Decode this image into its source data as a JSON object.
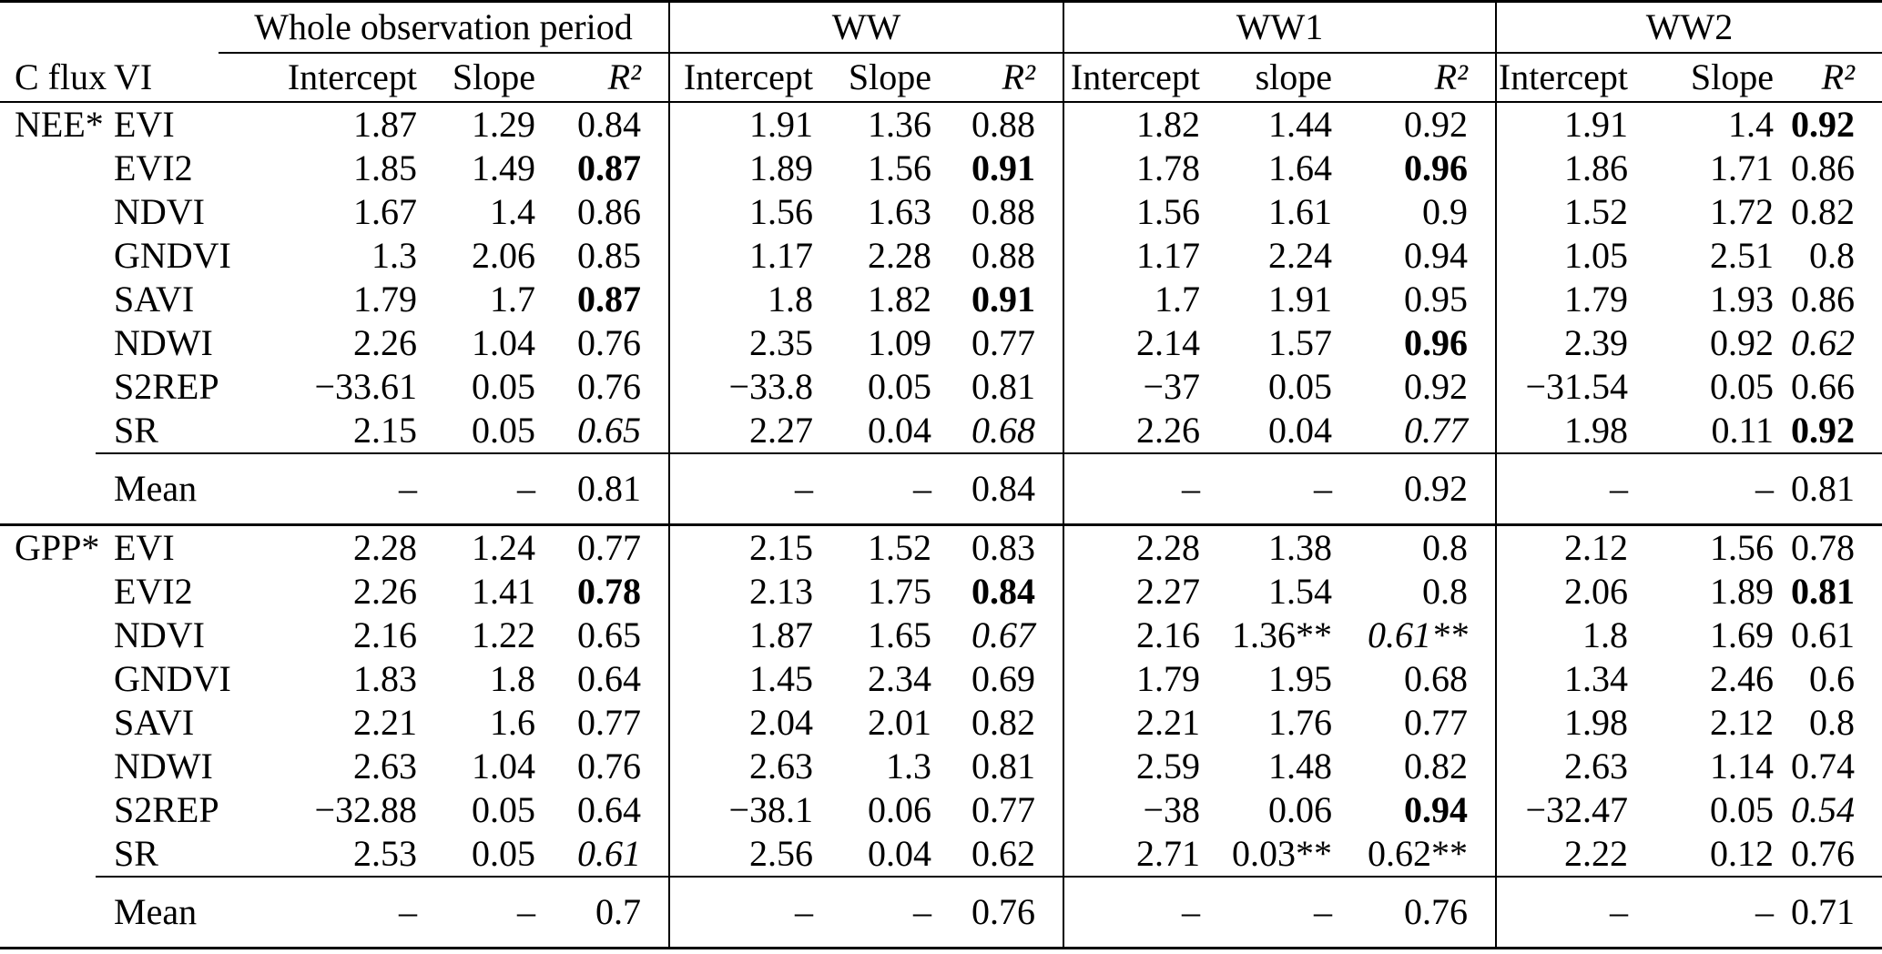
{
  "table": {
    "c_flux_label": "C flux",
    "vi_label": "VI",
    "groups": [
      {
        "label": "Whole observation period",
        "cols": [
          "Intercept",
          "Slope",
          "R²"
        ]
      },
      {
        "label": "WW",
        "cols": [
          "Intercept",
          "Slope",
          "R²"
        ]
      },
      {
        "label": "WW1",
        "cols": [
          "Intercept",
          "slope",
          "R²"
        ]
      },
      {
        "label": "WW2",
        "cols": [
          "Intercept",
          "Slope",
          "R²"
        ]
      }
    ],
    "sections": [
      {
        "c_flux": "NEE*",
        "rows": [
          {
            "vi": "EVI",
            "cells": [
              [
                "1.87",
                "1.29",
                "0.84"
              ],
              [
                "1.91",
                "1.36",
                "0.88"
              ],
              [
                "1.82",
                "1.44",
                "0.92"
              ],
              [
                "1.91",
                "1.4",
                "0.92"
              ]
            ],
            "r2_style": [
              "normal",
              "normal",
              "normal",
              "bold"
            ]
          },
          {
            "vi": "EVI2",
            "cells": [
              [
                "1.85",
                "1.49",
                "0.87"
              ],
              [
                "1.89",
                "1.56",
                "0.91"
              ],
              [
                "1.78",
                "1.64",
                "0.96"
              ],
              [
                "1.86",
                "1.71",
                "0.86"
              ]
            ],
            "r2_style": [
              "bold",
              "bold",
              "bold",
              "normal"
            ]
          },
          {
            "vi": "NDVI",
            "cells": [
              [
                "1.67",
                "1.4",
                "0.86"
              ],
              [
                "1.56",
                "1.63",
                "0.88"
              ],
              [
                "1.56",
                "1.61",
                "0.9"
              ],
              [
                "1.52",
                "1.72",
                "0.82"
              ]
            ],
            "r2_style": [
              "normal",
              "normal",
              "normal",
              "normal"
            ]
          },
          {
            "vi": "GNDVI",
            "cells": [
              [
                "1.3",
                "2.06",
                "0.85"
              ],
              [
                "1.17",
                "2.28",
                "0.88"
              ],
              [
                "1.17",
                "2.24",
                "0.94"
              ],
              [
                "1.05",
                "2.51",
                "0.8"
              ]
            ],
            "r2_style": [
              "normal",
              "normal",
              "normal",
              "normal"
            ]
          },
          {
            "vi": "SAVI",
            "cells": [
              [
                "1.79",
                "1.7",
                "0.87"
              ],
              [
                "1.8",
                "1.82",
                "0.91"
              ],
              [
                "1.7",
                "1.91",
                "0.95"
              ],
              [
                "1.79",
                "1.93",
                "0.86"
              ]
            ],
            "r2_style": [
              "bold",
              "bold",
              "normal",
              "normal"
            ]
          },
          {
            "vi": "NDWI",
            "cells": [
              [
                "2.26",
                "1.04",
                "0.76"
              ],
              [
                "2.35",
                "1.09",
                "0.77"
              ],
              [
                "2.14",
                "1.57",
                "0.96"
              ],
              [
                "2.39",
                "0.92",
                "0.62"
              ]
            ],
            "r2_style": [
              "normal",
              "normal",
              "bold",
              "italic"
            ]
          },
          {
            "vi": "S2REP",
            "cells": [
              [
                "−33.61",
                "0.05",
                "0.76"
              ],
              [
                "−33.8",
                "0.05",
                "0.81"
              ],
              [
                "−37",
                "0.05",
                "0.92"
              ],
              [
                "−31.54",
                "0.05",
                "0.66"
              ]
            ],
            "r2_style": [
              "normal",
              "normal",
              "normal",
              "normal"
            ]
          },
          {
            "vi": "SR",
            "cells": [
              [
                "2.15",
                "0.05",
                "0.65"
              ],
              [
                "2.27",
                "0.04",
                "0.68"
              ],
              [
                "2.26",
                "0.04",
                "0.77"
              ],
              [
                "1.98",
                "0.11",
                "0.92"
              ]
            ],
            "r2_style": [
              "italic",
              "italic",
              "italic",
              "bold"
            ]
          }
        ],
        "mean": {
          "label": "Mean",
          "dash": "–",
          "r2": [
            "0.81",
            "0.84",
            "0.92",
            "0.81"
          ]
        }
      },
      {
        "c_flux": "GPP*",
        "rows": [
          {
            "vi": "EVI",
            "cells": [
              [
                "2.28",
                "1.24",
                "0.77"
              ],
              [
                "2.15",
                "1.52",
                "0.83"
              ],
              [
                "2.28",
                "1.38",
                "0.8"
              ],
              [
                "2.12",
                "1.56",
                "0.78"
              ]
            ],
            "r2_style": [
              "normal",
              "normal",
              "normal",
              "normal"
            ]
          },
          {
            "vi": "EVI2",
            "cells": [
              [
                "2.26",
                "1.41",
                "0.78"
              ],
              [
                "2.13",
                "1.75",
                "0.84"
              ],
              [
                "2.27",
                "1.54",
                "0.8"
              ],
              [
                "2.06",
                "1.89",
                "0.81"
              ]
            ],
            "r2_style": [
              "bold",
              "bold",
              "normal",
              "bold"
            ]
          },
          {
            "vi": "NDVI",
            "cells": [
              [
                "2.16",
                "1.22",
                "0.65"
              ],
              [
                "1.87",
                "1.65",
                "0.67"
              ],
              [
                "2.16",
                "1.36**",
                "0.61**"
              ],
              [
                "1.8",
                "1.69",
                "0.61"
              ]
            ],
            "r2_style": [
              "normal",
              "italic",
              "italic",
              "normal"
            ]
          },
          {
            "vi": "GNDVI",
            "cells": [
              [
                "1.83",
                "1.8",
                "0.64"
              ],
              [
                "1.45",
                "2.34",
                "0.69"
              ],
              [
                "1.79",
                "1.95",
                "0.68"
              ],
              [
                "1.34",
                "2.46",
                "0.6"
              ]
            ],
            "r2_style": [
              "normal",
              "normal",
              "normal",
              "normal"
            ]
          },
          {
            "vi": "SAVI",
            "cells": [
              [
                "2.21",
                "1.6",
                "0.77"
              ],
              [
                "2.04",
                "2.01",
                "0.82"
              ],
              [
                "2.21",
                "1.76",
                "0.77"
              ],
              [
                "1.98",
                "2.12",
                "0.8"
              ]
            ],
            "r2_style": [
              "normal",
              "normal",
              "normal",
              "normal"
            ]
          },
          {
            "vi": "NDWI",
            "cells": [
              [
                "2.63",
                "1.04",
                "0.76"
              ],
              [
                "2.63",
                "1.3",
                "0.81"
              ],
              [
                "2.59",
                "1.48",
                "0.82"
              ],
              [
                "2.63",
                "1.14",
                "0.74"
              ]
            ],
            "r2_style": [
              "normal",
              "normal",
              "normal",
              "normal"
            ]
          },
          {
            "vi": "S2REP",
            "cells": [
              [
                "−32.88",
                "0.05",
                "0.64"
              ],
              [
                "−38.1",
                "0.06",
                "0.77"
              ],
              [
                "−38",
                "0.06",
                "0.94"
              ],
              [
                "−32.47",
                "0.05",
                "0.54"
              ]
            ],
            "r2_style": [
              "normal",
              "normal",
              "bold",
              "italic"
            ]
          },
          {
            "vi": "SR",
            "cells": [
              [
                "2.53",
                "0.05",
                "0.61"
              ],
              [
                "2.56",
                "0.04",
                "0.62"
              ],
              [
                "2.71",
                "0.03**",
                "0.62**"
              ],
              [
                "2.22",
                "0.12",
                "0.76"
              ]
            ],
            "r2_style": [
              "italic",
              "normal",
              "normal",
              "normal"
            ]
          }
        ],
        "mean": {
          "label": "Mean",
          "dash": "–",
          "r2": [
            "0.7",
            "0.76",
            "0.76",
            "0.71"
          ]
        }
      }
    ]
  }
}
